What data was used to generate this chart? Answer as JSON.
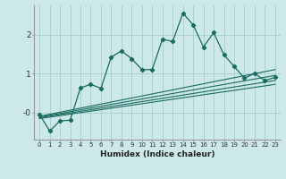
{
  "title": "",
  "xlabel": "Humidex (Indice chaleur)",
  "ylabel": "",
  "bg_color": "#cce8e8",
  "grid_color": "#aacccc",
  "line_color": "#1a6b60",
  "xlim": [
    -0.5,
    23.5
  ],
  "ylim": [
    -0.7,
    2.75
  ],
  "yticks": [
    0,
    1,
    2
  ],
  "ytick_labels": [
    "-0",
    "1",
    "2"
  ],
  "xticks": [
    0,
    1,
    2,
    3,
    4,
    5,
    6,
    7,
    8,
    9,
    10,
    11,
    12,
    13,
    14,
    15,
    16,
    17,
    18,
    19,
    20,
    21,
    22,
    23
  ],
  "main_x": [
    0,
    1,
    2,
    3,
    4,
    5,
    6,
    7,
    8,
    9,
    10,
    11,
    12,
    13,
    14,
    15,
    16,
    17,
    18,
    19,
    20,
    21,
    22,
    23
  ],
  "main_y": [
    -0.05,
    -0.48,
    -0.22,
    -0.2,
    0.63,
    0.72,
    0.62,
    1.42,
    1.58,
    1.38,
    1.1,
    1.1,
    1.88,
    1.82,
    2.55,
    2.25,
    1.68,
    2.05,
    1.48,
    1.18,
    0.88,
    1.0,
    0.82,
    0.9
  ],
  "reg_lines": [
    {
      "x": [
        0,
        23
      ],
      "y": [
        -0.1,
        1.1
      ]
    },
    {
      "x": [
        0,
        23
      ],
      "y": [
        -0.12,
        0.95
      ]
    },
    {
      "x": [
        0,
        23
      ],
      "y": [
        -0.14,
        0.82
      ]
    },
    {
      "x": [
        0,
        23
      ],
      "y": [
        -0.16,
        0.72
      ]
    }
  ]
}
